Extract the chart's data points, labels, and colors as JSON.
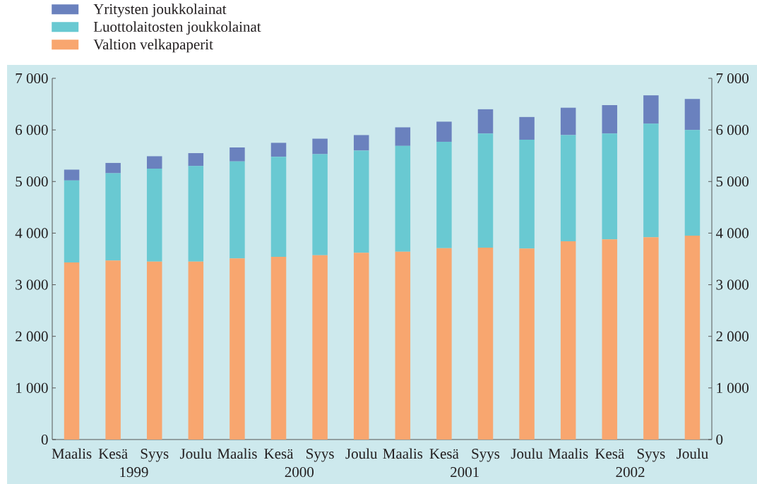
{
  "chart_data": {
    "type": "bar",
    "stacked": true,
    "categories": [
      "Maalis",
      "Kesä",
      "Syys",
      "Joulu",
      "Maalis",
      "Kesä",
      "Syys",
      "Joulu",
      "Maalis",
      "Kesä",
      "Syys",
      "Joulu",
      "Maalis",
      "Kesä",
      "Syys",
      "Joulu"
    ],
    "series": [
      {
        "name": "Valtion velkapaperit",
        "color": "#f8a66f",
        "values": [
          3430,
          3470,
          3450,
          3450,
          3510,
          3540,
          3570,
          3620,
          3640,
          3710,
          3720,
          3700,
          3840,
          3880,
          3920,
          3950
        ]
      },
      {
        "name": "Luottolaitosten joukkolainat",
        "color": "#69c9d2",
        "values": [
          1590,
          1690,
          1800,
          1850,
          1880,
          1940,
          1960,
          1980,
          2050,
          2060,
          2210,
          2110,
          2060,
          2050,
          2200,
          2050
        ]
      },
      {
        "name": "Yritysten joukkolainat",
        "color": "#6a81be",
        "values": [
          210,
          200,
          240,
          250,
          270,
          270,
          300,
          300,
          360,
          390,
          470,
          440,
          530,
          550,
          550,
          600
        ]
      }
    ],
    "ylim": [
      0,
      7000
    ],
    "yticks": [
      0,
      {
        "value": 1000,
        "label": "1 000"
      },
      {
        "value": 2000,
        "label": "2 000"
      },
      {
        "value": 3000,
        "label": "3 000"
      },
      {
        "value": 4000,
        "label": "4 000"
      },
      {
        "value": 5000,
        "label": "5 000"
      },
      {
        "value": 6000,
        "label": "6 000"
      },
      {
        "value": 7000,
        "label": "7 000"
      }
    ],
    "y2lim": [
      0,
      7000
    ],
    "y2ticks": [
      0,
      {
        "value": 1000,
        "label": "1 000"
      },
      {
        "value": 2000,
        "label": "2 000"
      },
      {
        "value": 3000,
        "label": "3 000"
      },
      {
        "value": 4000,
        "label": "4 000"
      },
      {
        "value": 5000,
        "label": "5 000"
      },
      {
        "value": 6000,
        "label": "6 000"
      },
      {
        "value": 7000,
        "label": "7 000"
      }
    ],
    "annotations": [
      "1999",
      "2000",
      "2001",
      "2002"
    ],
    "legend": "top left"
  }
}
